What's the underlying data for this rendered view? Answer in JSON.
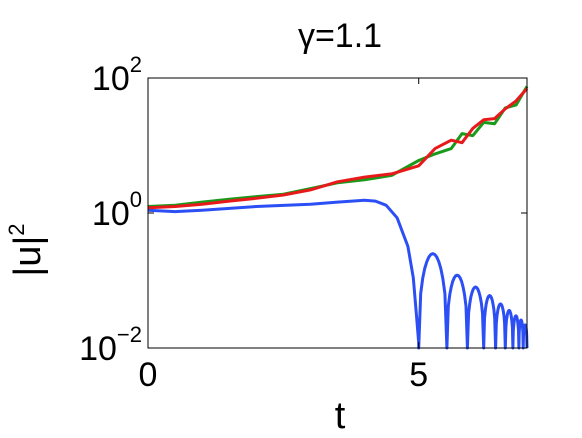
{
  "chart_data": {
    "type": "line",
    "title": "γ=1.1",
    "xlabel": "t",
    "ylabel": "|u|",
    "ylabel_superscript": "2",
    "xlim": [
      0,
      7
    ],
    "ylim": [
      0.01,
      100
    ],
    "yscale": "log",
    "grid": false,
    "x_ticks": [
      {
        "value": 0,
        "label": "0"
      },
      {
        "value": 5,
        "label": "5"
      }
    ],
    "y_ticks": [
      {
        "value": 0.01,
        "base": "10",
        "exp": "−2"
      },
      {
        "value": 1,
        "base": "10",
        "exp": "0"
      },
      {
        "value": 100,
        "base": "10",
        "exp": "2"
      }
    ],
    "series": [
      {
        "color": "#2c4ff5",
        "points": [
          [
            0,
            1.1
          ],
          [
            0.5,
            1.05
          ],
          [
            1,
            1.1
          ],
          [
            2,
            1.25
          ],
          [
            3,
            1.35
          ],
          [
            3.5,
            1.45
          ],
          [
            4,
            1.55
          ],
          [
            4.2,
            1.5
          ],
          [
            4.4,
            1.3
          ],
          [
            4.6,
            0.85
          ],
          [
            4.8,
            0.32
          ],
          [
            4.9,
            0.11
          ],
          [
            4.96,
            0.03
          ],
          [
            5.0,
            0.012
          ]
        ],
        "decay_from_t": 5.0,
        "decay_lobes": [
          {
            "start": 5.0,
            "end": 5.52,
            "peak": 0.25
          },
          {
            "start": 5.52,
            "end": 5.9,
            "peak": 0.12
          },
          {
            "start": 5.9,
            "end": 6.2,
            "peak": 0.08
          },
          {
            "start": 6.2,
            "end": 6.42,
            "peak": 0.06
          },
          {
            "start": 6.42,
            "end": 6.6,
            "peak": 0.045
          },
          {
            "start": 6.6,
            "end": 6.74,
            "peak": 0.036
          },
          {
            "start": 6.74,
            "end": 6.85,
            "peak": 0.03
          },
          {
            "start": 6.85,
            "end": 6.93,
            "peak": 0.026
          },
          {
            "start": 6.93,
            "end": 7.0,
            "peak": 0.022
          }
        ]
      },
      {
        "color": "#1a9a1a",
        "points": [
          [
            0,
            1.25
          ],
          [
            0.5,
            1.3
          ],
          [
            1,
            1.45
          ],
          [
            1.5,
            1.6
          ],
          [
            2,
            1.75
          ],
          [
            2.5,
            1.9
          ],
          [
            3,
            2.3
          ],
          [
            3.5,
            2.8
          ],
          [
            4,
            3.1
          ],
          [
            4.5,
            3.6
          ],
          [
            5,
            6
          ],
          [
            5.3,
            7.5
          ],
          [
            5.6,
            9
          ],
          [
            5.8,
            15
          ],
          [
            6.0,
            14
          ],
          [
            6.2,
            22
          ],
          [
            6.4,
            21
          ],
          [
            6.6,
            36
          ],
          [
            6.8,
            40
          ],
          [
            7.0,
            75
          ]
        ]
      },
      {
        "color": "#e8191a",
        "points": [
          [
            0,
            1.2
          ],
          [
            0.5,
            1.25
          ],
          [
            1,
            1.35
          ],
          [
            1.5,
            1.5
          ],
          [
            2,
            1.65
          ],
          [
            2.5,
            1.85
          ],
          [
            3,
            2.2
          ],
          [
            3.5,
            2.9
          ],
          [
            4,
            3.4
          ],
          [
            4.5,
            3.8
          ],
          [
            5,
            5
          ],
          [
            5.3,
            9
          ],
          [
            5.6,
            12
          ],
          [
            5.8,
            11
          ],
          [
            6.0,
            18
          ],
          [
            6.2,
            24
          ],
          [
            6.4,
            25
          ],
          [
            6.6,
            35
          ],
          [
            6.8,
            46
          ],
          [
            7.0,
            70
          ]
        ]
      }
    ]
  }
}
